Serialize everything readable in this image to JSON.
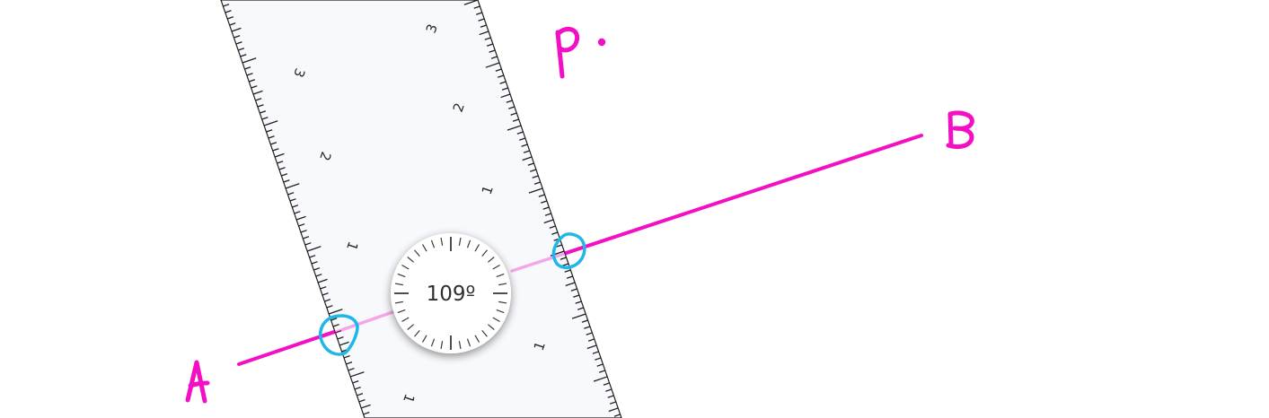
{
  "colors": {
    "ink": "#f20fc4",
    "highlight": "#1fb6e8",
    "ruler_fill": "#f7f9fc",
    "ruler_edge": "#1f1f1f",
    "dial_fill": "#ffffff"
  },
  "canvas": {
    "tool": "ruler",
    "point_label": "P",
    "start_label": "A",
    "end_label": "B"
  },
  "ruler": {
    "angle_readout": "109º",
    "left_scale": [
      "1",
      "2",
      "3"
    ],
    "right_scale": [
      "1",
      "1",
      "2",
      "3"
    ],
    "bottom_label": "1"
  }
}
